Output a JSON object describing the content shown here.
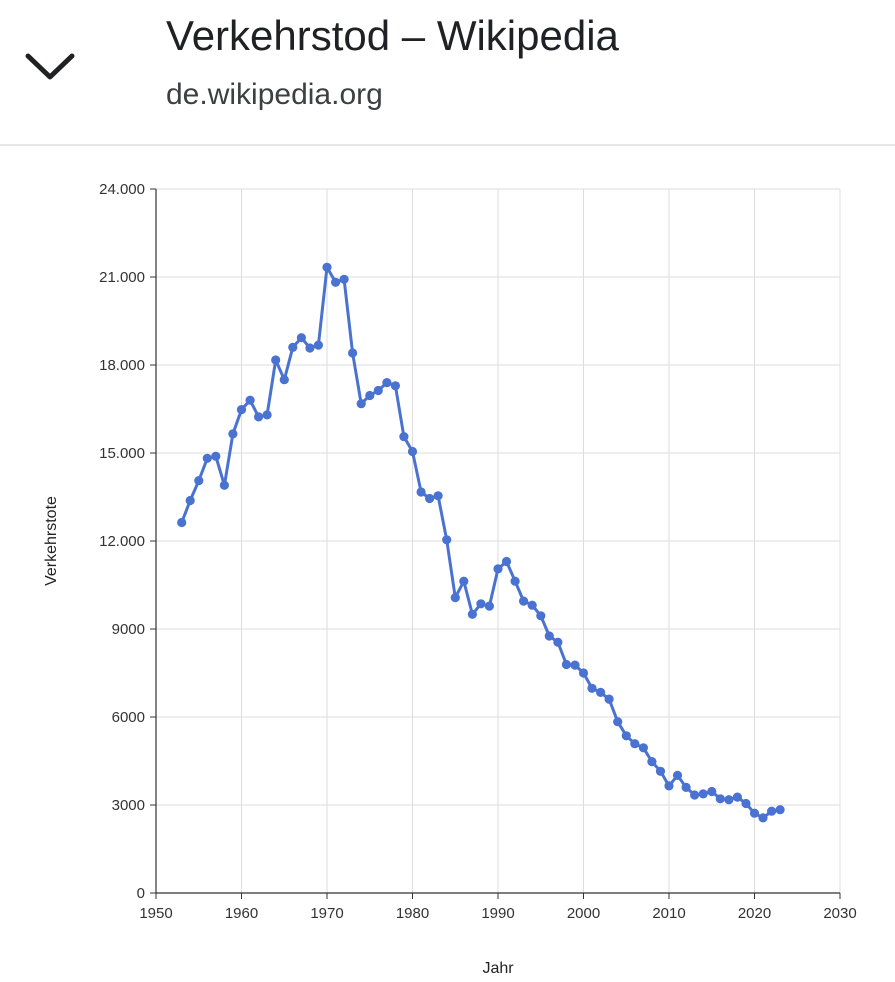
{
  "header": {
    "title": "Verkehrstod – Wikipedia",
    "domain": "de.wikipedia.org",
    "collapse_icon": "chevron-down-icon"
  },
  "chart_data": {
    "type": "line",
    "title": "",
    "xlabel": "Jahr",
    "ylabel": "Verkehrstote",
    "xlim": [
      1950,
      2030
    ],
    "ylim": [
      0,
      24000
    ],
    "grid": true,
    "legend": "none",
    "line_color": "#4a72d0",
    "x_ticks": [
      {
        "value": 1950,
        "label": "1950"
      },
      {
        "value": 1960,
        "label": "1960"
      },
      {
        "value": 1970,
        "label": "1970"
      },
      {
        "value": 1980,
        "label": "1980"
      },
      {
        "value": 1990,
        "label": "1990"
      },
      {
        "value": 2000,
        "label": "2000"
      },
      {
        "value": 2010,
        "label": "2010"
      },
      {
        "value": 2020,
        "label": "2020"
      },
      {
        "value": 2030,
        "label": "2030"
      }
    ],
    "y_ticks": [
      {
        "value": 0,
        "label": "0"
      },
      {
        "value": 3000,
        "label": "3000"
      },
      {
        "value": 6000,
        "label": "6000"
      },
      {
        "value": 9000,
        "label": "9000"
      },
      {
        "value": 12000,
        "label": "12.000"
      },
      {
        "value": 15000,
        "label": "15.000"
      },
      {
        "value": 18000,
        "label": "18.000"
      },
      {
        "value": 21000,
        "label": "21.000"
      },
      {
        "value": 24000,
        "label": "24.000"
      }
    ],
    "x": [
      1953,
      1954,
      1955,
      1956,
      1957,
      1958,
      1959,
      1960,
      1961,
      1962,
      1963,
      1964,
      1965,
      1966,
      1967,
      1968,
      1969,
      1970,
      1971,
      1972,
      1973,
      1974,
      1975,
      1976,
      1977,
      1978,
      1979,
      1980,
      1981,
      1982,
      1983,
      1984,
      1985,
      1986,
      1987,
      1988,
      1989,
      1990,
      1991,
      1992,
      1993,
      1994,
      1995,
      1996,
      1997,
      1998,
      1999,
      2000,
      2001,
      2002,
      2003,
      2004,
      2005,
      2006,
      2007,
      2008,
      2009,
      2010,
      2011,
      2012,
      2013,
      2014,
      2015,
      2016,
      2017,
      2018,
      2019,
      2020,
      2021,
      2022,
      2023
    ],
    "y": [
      12630,
      13380,
      14060,
      14820,
      14890,
      13900,
      15650,
      16480,
      16800,
      16230,
      16300,
      18170,
      17500,
      18600,
      18930,
      18580,
      18680,
      21330,
      20820,
      20920,
      18410,
      16680,
      16960,
      17130,
      17400,
      17290,
      15560,
      15050,
      13670,
      13450,
      13540,
      12040,
      10070,
      10630,
      9500,
      9860,
      9780,
      11050,
      11300,
      10630,
      9950,
      9810,
      9450,
      8760,
      8550,
      7790,
      7770,
      7500,
      6980,
      6840,
      6610,
      5840,
      5360,
      5090,
      4950,
      4480,
      4150,
      3650,
      4010,
      3600,
      3340,
      3380,
      3460,
      3210,
      3180,
      3270,
      3050,
      2720,
      2560,
      2790,
      2840
    ]
  }
}
